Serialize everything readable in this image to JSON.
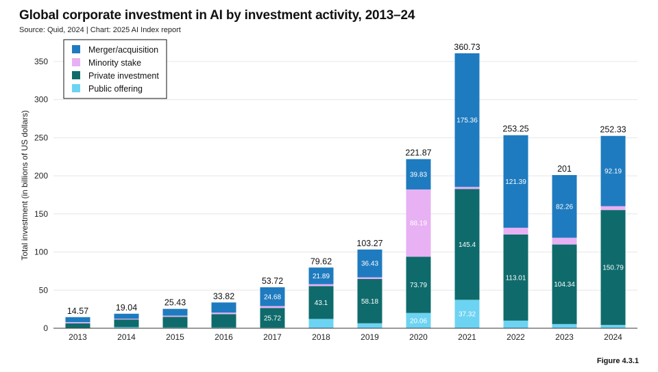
{
  "header": {
    "title": "Global corporate investment in AI by investment activity, 2013–24",
    "subtitle": "Source: Quid, 2024 | Chart: 2025 AI Index report"
  },
  "footer": {
    "figure": "Figure 4.3.1"
  },
  "colors": {
    "merger": "#1f7bbf",
    "minority": "#e7b1f3",
    "private": "#0f6b6b",
    "public": "#6dd3f2",
    "grid": "#e6e6e6",
    "axis": "#333333"
  },
  "chart_data": {
    "type": "bar",
    "stacked": true,
    "title": "Global corporate investment in AI by investment activity, 2013–24",
    "xlabel": "",
    "ylabel": "Total investment (in billions of US dollars)",
    "ylim": [
      0,
      375
    ],
    "yticks": [
      0,
      50,
      100,
      150,
      200,
      250,
      300,
      350
    ],
    "categories": [
      "2013",
      "2014",
      "2015",
      "2016",
      "2017",
      "2018",
      "2019",
      "2020",
      "2021",
      "2022",
      "2023",
      "2024"
    ],
    "series": [
      {
        "name": "Public offering",
        "color_key": "public",
        "values": [
          0.5,
          1.5,
          1.0,
          1.0,
          0.8,
          12.2,
          6.5,
          20.06,
          37.32,
          10.0,
          5.5,
          4.3
        ]
      },
      {
        "name": "Private investment",
        "color_key": "private",
        "values": [
          6.0,
          10.0,
          14.0,
          17.5,
          25.72,
          43.1,
          58.18,
          73.79,
          145.4,
          113.01,
          104.34,
          150.79
        ]
      },
      {
        "name": "Minority stake",
        "color_key": "minority",
        "values": [
          1.5,
          1.0,
          1.5,
          2.0,
          2.52,
          2.43,
          2.16,
          88.19,
          2.65,
          8.85,
          8.86,
          5.05
        ]
      },
      {
        "name": "Merger/acquisition",
        "color_key": "merger",
        "values": [
          6.57,
          6.54,
          8.93,
          13.32,
          24.68,
          21.89,
          36.43,
          39.83,
          175.36,
          121.39,
          82.26,
          92.19
        ]
      }
    ],
    "segment_labels": [
      {
        "series": "Merger/acquisition",
        "index": 4,
        "text": "24.68"
      },
      {
        "series": "Merger/acquisition",
        "index": 5,
        "text": "21.89"
      },
      {
        "series": "Merger/acquisition",
        "index": 6,
        "text": "36.43"
      },
      {
        "series": "Merger/acquisition",
        "index": 7,
        "text": "39.83"
      },
      {
        "series": "Merger/acquisition",
        "index": 8,
        "text": "175.36"
      },
      {
        "series": "Merger/acquisition",
        "index": 9,
        "text": "121.39"
      },
      {
        "series": "Merger/acquisition",
        "index": 10,
        "text": "82.26"
      },
      {
        "series": "Merger/acquisition",
        "index": 11,
        "text": "92.19"
      },
      {
        "series": "Minority stake",
        "index": 7,
        "text": "88.19"
      },
      {
        "series": "Private investment",
        "index": 4,
        "text": "25.72"
      },
      {
        "series": "Private investment",
        "index": 5,
        "text": "43.1"
      },
      {
        "series": "Private investment",
        "index": 6,
        "text": "58.18"
      },
      {
        "series": "Private investment",
        "index": 7,
        "text": "73.79"
      },
      {
        "series": "Private investment",
        "index": 8,
        "text": "145.4"
      },
      {
        "series": "Private investment",
        "index": 9,
        "text": "113.01"
      },
      {
        "series": "Private investment",
        "index": 10,
        "text": "104.34"
      },
      {
        "series": "Private investment",
        "index": 11,
        "text": "150.79"
      },
      {
        "series": "Public offering",
        "index": 7,
        "text": "20.06"
      },
      {
        "series": "Public offering",
        "index": 8,
        "text": "37.32"
      }
    ],
    "totals": [
      "14.57",
      "19.04",
      "25.43",
      "33.82",
      "53.72",
      "79.62",
      "103.27",
      "221.87",
      "360.73",
      "253.25",
      "201",
      "252.33"
    ],
    "legend": {
      "position": "top-left",
      "entries": [
        "Merger/acquisition",
        "Minority stake",
        "Private investment",
        "Public offering"
      ]
    },
    "grid": true
  }
}
